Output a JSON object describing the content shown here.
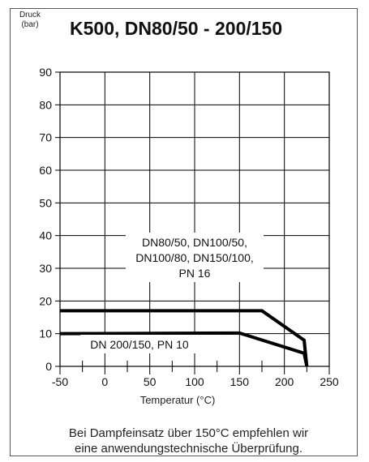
{
  "chart_data": {
    "type": "line",
    "title": "K500, DN80/50 - 200/150",
    "ylabel": [
      "Druck",
      "(bar)"
    ],
    "xlabel": "Temperatur (°C)",
    "xlim": [
      -50,
      250
    ],
    "ylim": [
      0,
      90
    ],
    "x_ticks": [
      -50,
      0,
      50,
      100,
      150,
      200,
      250
    ],
    "y_ticks": [
      0,
      10,
      20,
      30,
      40,
      50,
      60,
      70,
      80,
      90
    ],
    "grid": true,
    "series": [
      {
        "name": [
          "DN80/50, DN100/50,",
          "DN100/80, DN150/100,",
          "PN 16"
        ],
        "points": [
          [
            -50,
            17
          ],
          [
            175,
            17
          ],
          [
            222,
            8
          ],
          [
            225,
            0
          ]
        ]
      },
      {
        "name": [
          "DN 200/150, PN 10"
        ],
        "points": [
          [
            -50,
            10
          ],
          [
            150,
            10.2
          ],
          [
            222,
            4
          ],
          [
            225,
            0
          ]
        ]
      }
    ]
  },
  "footnote": [
    "Bei Dampfeinsatz über 150°C empfehlen wir",
    "eine anwendungstechnische Überprüfung."
  ]
}
